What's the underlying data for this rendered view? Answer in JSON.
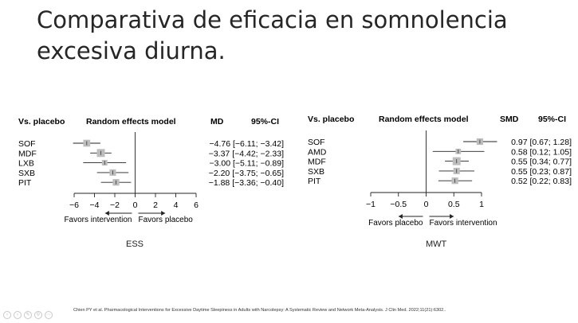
{
  "title_lines": [
    "Comparativa de eficacia en somnolencia",
    "excesiva diurna."
  ],
  "citation": "Chien PY et al. Pharmacological Interventions for Excessive Daytime Sleepiness in Adults with Narcolepsy: A Systematic Review and Network Meta-Analysis. J Clin Med. 2022;11(21):6302..",
  "chart_data": [
    {
      "type": "forest",
      "caption": "ESS",
      "header_left": "Vs. placebo",
      "header_model": "Random effects model",
      "header_effect": "MD",
      "header_ci": "95%-CI",
      "categories": [
        "SOF",
        "MDF",
        "LXB",
        "SXB",
        "PIT"
      ],
      "values": [
        -4.76,
        -3.37,
        -3.0,
        -2.2,
        -1.88
      ],
      "ci": [
        [
          -6.11,
          -3.42
        ],
        [
          -4.42,
          -2.33
        ],
        [
          -5.11,
          -0.89
        ],
        [
          -3.75,
          -0.65
        ],
        [
          -3.36,
          -0.4
        ]
      ],
      "ci_text": [
        "−4.76 [−6.11; −3.42]",
        "−3.37 [−4.42; −2.33]",
        "−3.00 [−5.11; −0.89]",
        "−2.20 [−3.75; −0.65]",
        "−1.88 [−3.36; −0.40]"
      ],
      "xlim": [
        -6,
        6
      ],
      "ticks": [
        -6,
        -4,
        -2,
        0,
        2,
        4,
        6
      ],
      "tick_labels": [
        "−6",
        "−4",
        "−2",
        "0",
        "2",
        "4",
        "6"
      ],
      "favors_left": "Favors intervention",
      "favors_right": "Favors placebo"
    },
    {
      "type": "forest",
      "caption": "MWT",
      "header_left": "Vs. placebo",
      "header_model": "Random effects model",
      "header_effect": "SMD",
      "header_ci": "95%-CI",
      "categories": [
        "SOF",
        "AMD",
        "MDF",
        "SXB",
        "PIT"
      ],
      "values": [
        0.97,
        0.58,
        0.55,
        0.55,
        0.52
      ],
      "ci": [
        [
          0.67,
          1.28
        ],
        [
          0.12,
          1.05
        ],
        [
          0.34,
          0.77
        ],
        [
          0.23,
          0.87
        ],
        [
          0.22,
          0.83
        ]
      ],
      "ci_text": [
        "0.97 [0.67; 1.28]",
        "0.58 [0.12; 1.05]",
        "0.55 [0.34; 0.77]",
        "0.55 [0.23; 0.87]",
        "0.52 [0.22; 0.83]"
      ],
      "xlim": [
        -1,
        1
      ],
      "ticks": [
        -1,
        -0.5,
        0,
        0.5,
        1
      ],
      "tick_labels": [
        "−1",
        "−0.5",
        "0",
        "0.5",
        "1"
      ],
      "favors_left": "Favors placebo",
      "favors_right": "Favors intervention"
    }
  ]
}
